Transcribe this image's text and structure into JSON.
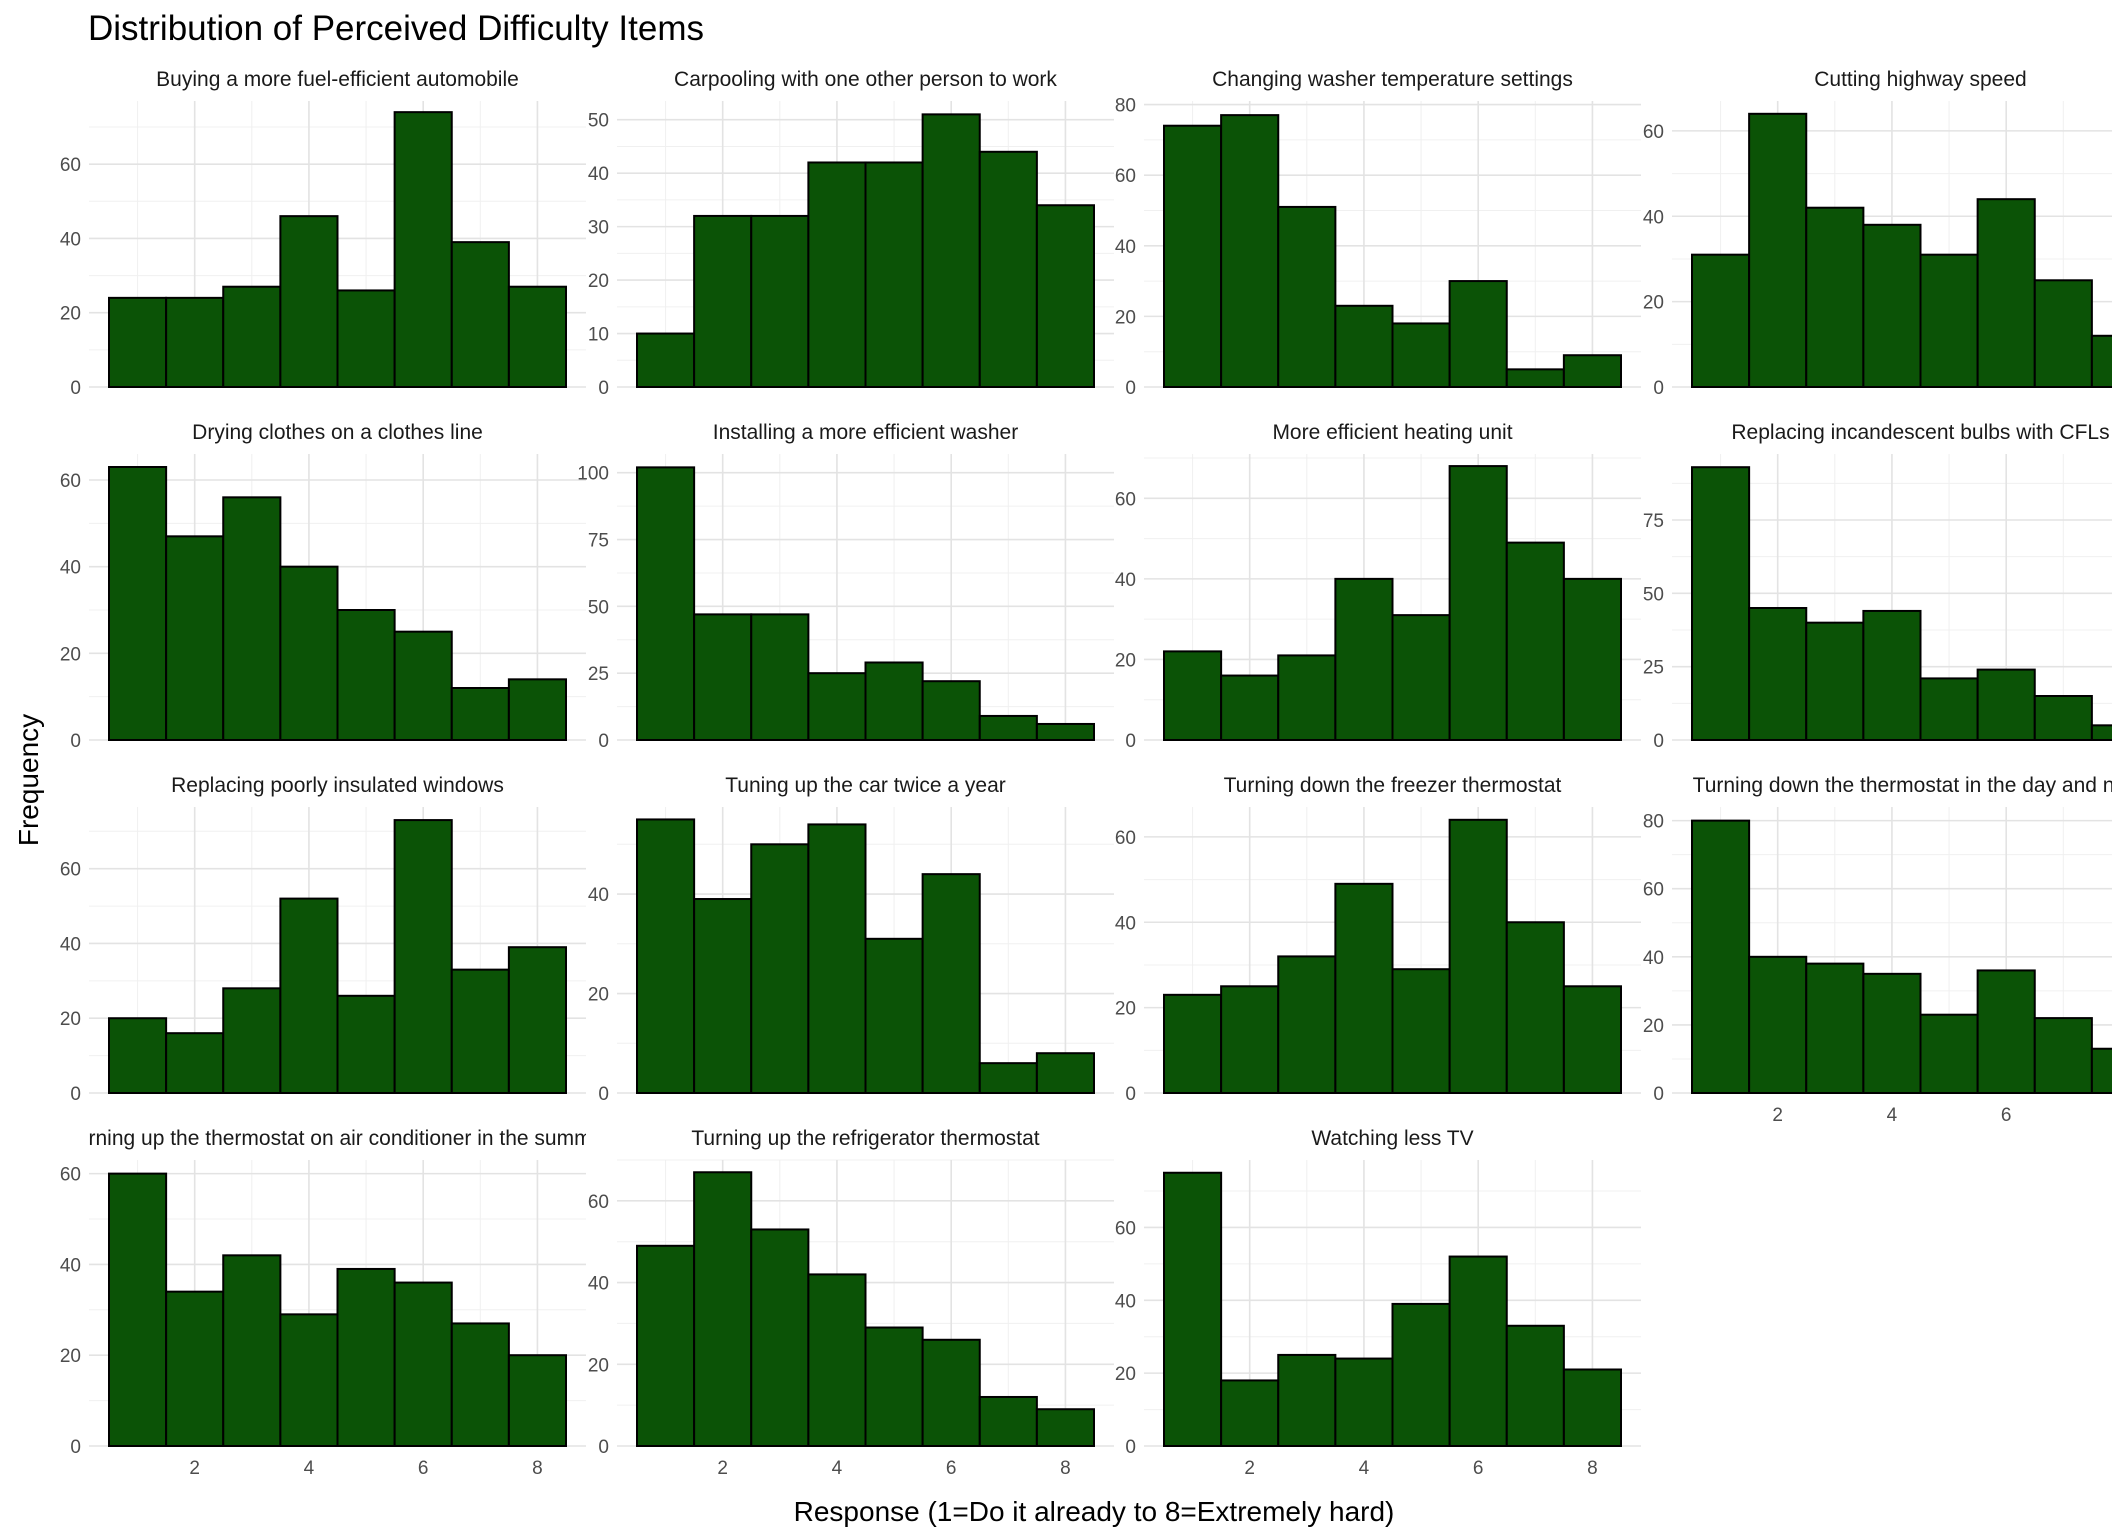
{
  "chart_data": {
    "type": "bar",
    "title": "Distribution of Perceived Difficulty Items",
    "xlabel": "Response (1=Do it already to 8=Extremely hard)",
    "ylabel": "Frequency",
    "bar_color": "#0b5306",
    "bar_outline": "#000000",
    "grid": "on",
    "x_categories": [
      1,
      2,
      3,
      4,
      5,
      6,
      7,
      8
    ],
    "x_ticks": [
      2,
      4,
      6,
      8
    ],
    "panels": [
      {
        "title": "Buying a more fuel-efficient automobile",
        "values": [
          24,
          24,
          27,
          46,
          26,
          74,
          39,
          27
        ],
        "y_ticks": [
          0,
          20,
          40,
          60
        ],
        "ylim": [
          0,
          77
        ]
      },
      {
        "title": "Carpooling with one other person to work",
        "values": [
          10,
          32,
          32,
          42,
          42,
          51,
          44,
          34
        ],
        "y_ticks": [
          0,
          10,
          20,
          30,
          40,
          50
        ],
        "ylim": [
          0,
          53.5
        ]
      },
      {
        "title": "Changing washer temperature settings",
        "values": [
          74,
          77,
          51,
          23,
          18,
          30,
          5,
          9
        ],
        "y_ticks": [
          0,
          20,
          40,
          60,
          80
        ],
        "ylim": [
          0,
          81
        ]
      },
      {
        "title": "Cutting highway speed",
        "values": [
          31,
          64,
          42,
          38,
          31,
          44,
          25,
          12
        ],
        "y_ticks": [
          0,
          20,
          40,
          60
        ],
        "ylim": [
          0,
          67
        ]
      },
      {
        "title": "Drying clothes on a clothes line",
        "values": [
          63,
          47,
          56,
          40,
          30,
          25,
          12,
          14
        ],
        "y_ticks": [
          0,
          20,
          40,
          60
        ],
        "ylim": [
          0,
          66
        ]
      },
      {
        "title": "Installing a more efficient washer",
        "values": [
          102,
          47,
          47,
          25,
          29,
          22,
          9,
          6
        ],
        "y_ticks": [
          0,
          25,
          50,
          75,
          100
        ],
        "ylim": [
          0,
          107
        ]
      },
      {
        "title": "More efficient heating unit",
        "values": [
          22,
          16,
          21,
          40,
          31,
          68,
          49,
          40
        ],
        "y_ticks": [
          0,
          20,
          40,
          60
        ],
        "ylim": [
          0,
          71
        ]
      },
      {
        "title": "Replacing incandescent bulbs with CFLs",
        "values": [
          93,
          45,
          40,
          44,
          21,
          24,
          15,
          5
        ],
        "y_ticks": [
          0,
          25,
          50,
          75
        ],
        "ylim": [
          0,
          97.5
        ]
      },
      {
        "title": "Replacing poorly insulated windows",
        "values": [
          20,
          16,
          28,
          52,
          26,
          73,
          33,
          39
        ],
        "y_ticks": [
          0,
          20,
          40,
          60
        ],
        "ylim": [
          0,
          76.5
        ]
      },
      {
        "title": "Tuning up the car twice a year",
        "values": [
          55,
          39,
          50,
          54,
          31,
          44,
          6,
          8
        ],
        "y_ticks": [
          0,
          20,
          40
        ],
        "ylim": [
          0,
          57.5
        ]
      },
      {
        "title": "Turning down the freezer thermostat",
        "values": [
          23,
          25,
          32,
          49,
          29,
          64,
          40,
          25
        ],
        "y_ticks": [
          0,
          20,
          40,
          60
        ],
        "ylim": [
          0,
          67
        ]
      },
      {
        "title": "Turning down the thermostat in the day and night",
        "values": [
          80,
          40,
          38,
          35,
          23,
          36,
          22,
          13
        ],
        "y_ticks": [
          0,
          20,
          40,
          60,
          80
        ],
        "ylim": [
          0,
          84
        ]
      },
      {
        "title": "Turning up the thermostat on air conditioner in the summer",
        "values": [
          60,
          34,
          42,
          29,
          39,
          36,
          27,
          20
        ],
        "y_ticks": [
          0,
          20,
          40,
          60
        ],
        "ylim": [
          0,
          63
        ]
      },
      {
        "title": "Turning up the refrigerator thermostat",
        "values": [
          49,
          67,
          53,
          42,
          29,
          26,
          12,
          9
        ],
        "y_ticks": [
          0,
          20,
          40,
          60
        ],
        "ylim": [
          0,
          70
        ]
      },
      {
        "title": "Watching less TV",
        "values": [
          75,
          18,
          25,
          24,
          39,
          52,
          33,
          21
        ],
        "y_ticks": [
          0,
          20,
          40,
          60
        ],
        "ylim": [
          0,
          78.5
        ]
      }
    ]
  }
}
